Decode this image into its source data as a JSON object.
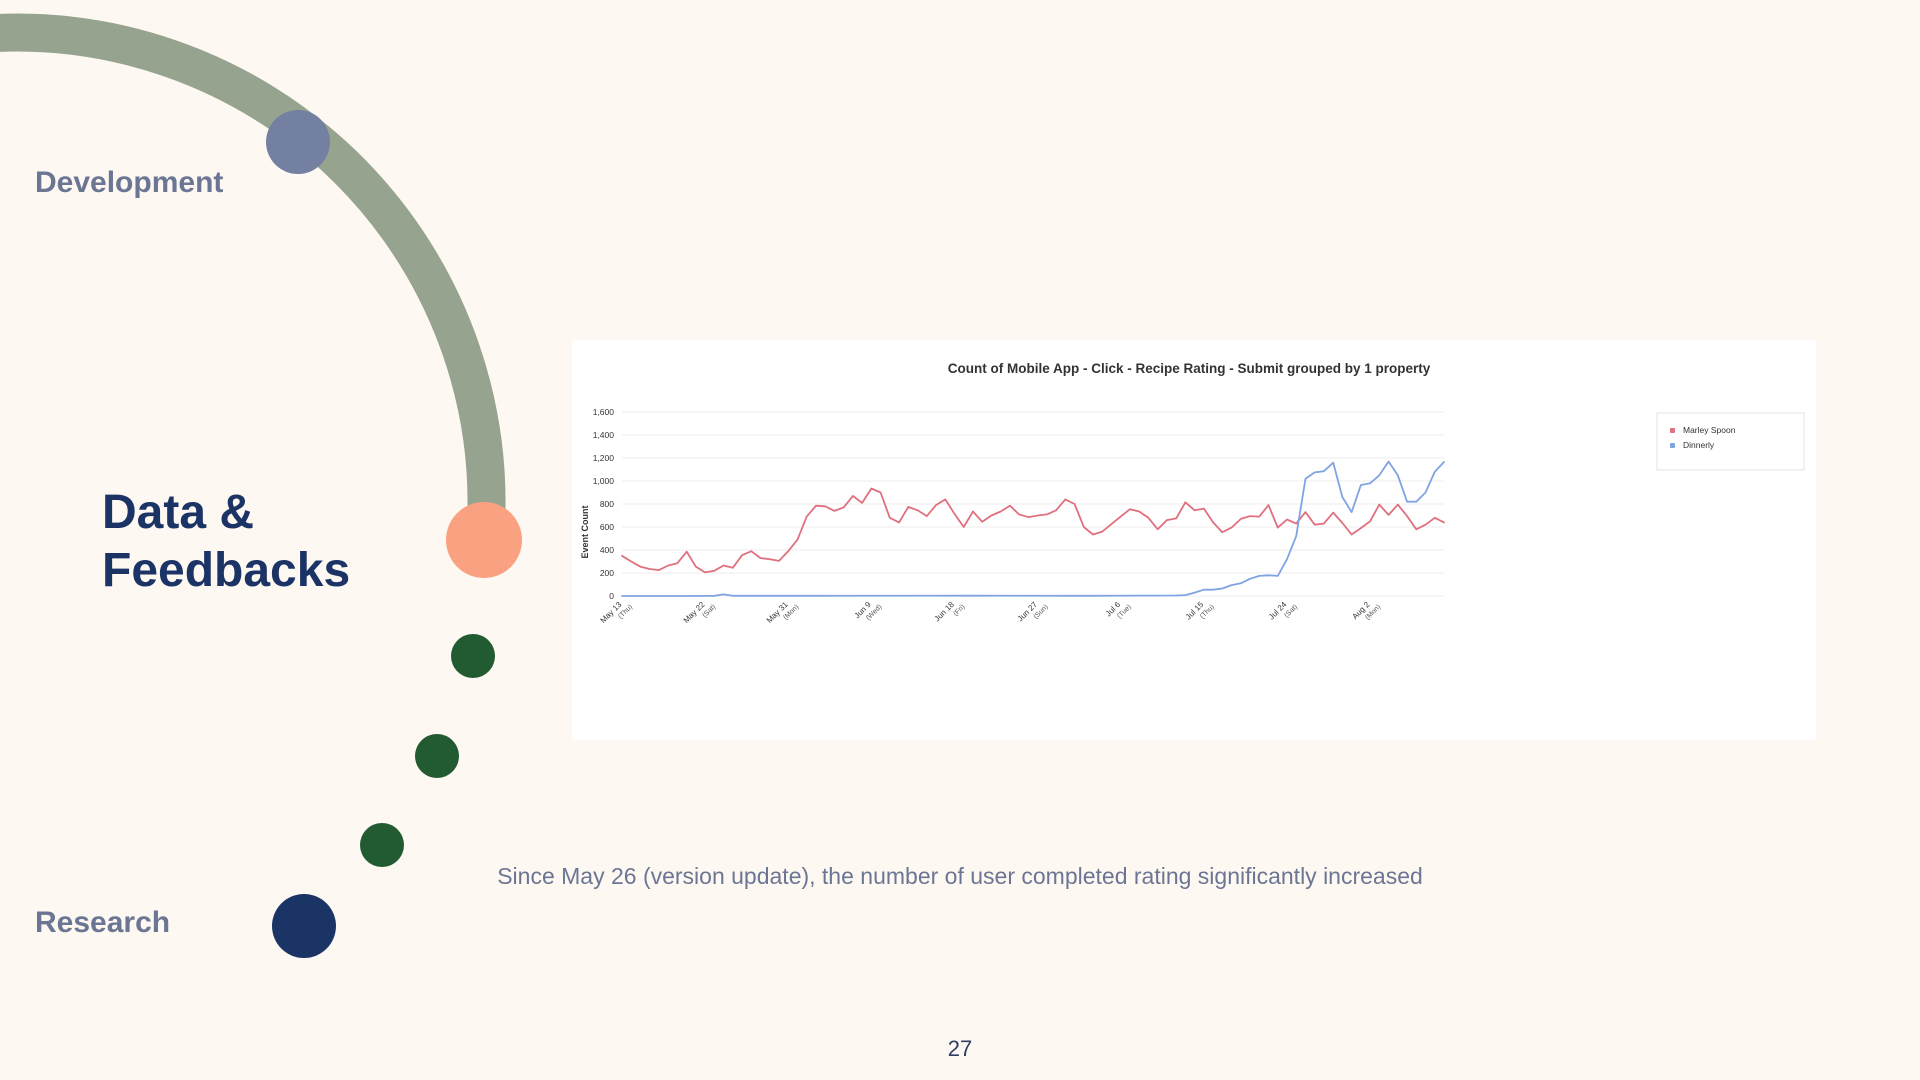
{
  "slide": {
    "stages": {
      "top": "Development",
      "current_line1": "Data &",
      "current_line2": "Feedbacks",
      "bottom": "Research"
    },
    "caption": "Since May 26 (version update), the number of user completed rating significantly increased",
    "page_number": "27",
    "colors": {
      "background": "#FEF8F2",
      "arc": "#96A38E",
      "development_dot": "#7480A2",
      "current_dot": "#F9A180",
      "step_dots": "#225A32",
      "research_dot": "#1A3466",
      "heading": "#1C3465",
      "muted_label": "#6B7694"
    }
  },
  "chart_data": {
    "type": "line",
    "title": "Count of Mobile App - Click - Recipe Rating - Submit grouped by 1 property",
    "xlabel": "",
    "ylabel": "Event Count",
    "ylim": [
      0,
      1600
    ],
    "yticks": [
      0,
      200,
      400,
      600,
      800,
      1000,
      1200,
      1400,
      1600
    ],
    "ytick_labels": [
      "0",
      "200",
      "400",
      "600",
      "800",
      "1,000",
      "1,200",
      "1,400",
      "1,600"
    ],
    "xlim": [
      "2023-05-13",
      "2023-08-10"
    ],
    "xticks": [
      {
        "date": "2023-05-13",
        "label": "May 13",
        "sub": "(Thu)"
      },
      {
        "date": "2023-05-22",
        "label": "May 22",
        "sub": "(Sat)"
      },
      {
        "date": "2023-05-31",
        "label": "May 31",
        "sub": "(Mon)"
      },
      {
        "date": "2023-06-09",
        "label": "Jun 9",
        "sub": "(Wed)"
      },
      {
        "date": "2023-06-18",
        "label": "Jun 18",
        "sub": "(Fri)"
      },
      {
        "date": "2023-06-27",
        "label": "Jun 27",
        "sub": "(Sun)"
      },
      {
        "date": "2023-07-06",
        "label": "Jul 6",
        "sub": "(Tue)"
      },
      {
        "date": "2023-07-15",
        "label": "Jul 15",
        "sub": "(Thu)"
      },
      {
        "date": "2023-07-24",
        "label": "Jul 24",
        "sub": "(Sat)"
      },
      {
        "date": "2023-08-02",
        "label": "Aug 2",
        "sub": "(Mon)"
      }
    ],
    "grid": true,
    "legend_position": "top-right",
    "series": [
      {
        "name": "Marley Spoon",
        "color": "#E0707E",
        "points": [
          [
            "2023-05-13",
            350
          ],
          [
            "2023-05-14",
            300
          ],
          [
            "2023-05-15",
            255
          ],
          [
            "2023-05-16",
            235
          ],
          [
            "2023-05-17",
            225
          ],
          [
            "2023-05-18",
            265
          ],
          [
            "2023-05-19",
            285
          ],
          [
            "2023-05-20",
            385
          ],
          [
            "2023-05-21",
            255
          ],
          [
            "2023-05-22",
            205
          ],
          [
            "2023-05-23",
            220
          ],
          [
            "2023-05-24",
            265
          ],
          [
            "2023-05-25",
            245
          ],
          [
            "2023-05-26",
            355
          ],
          [
            "2023-05-27",
            390
          ],
          [
            "2023-05-28",
            330
          ],
          [
            "2023-05-29",
            320
          ],
          [
            "2023-05-30",
            305
          ],
          [
            "2023-05-31",
            390
          ],
          [
            "2023-06-01",
            490
          ],
          [
            "2023-06-02",
            690
          ],
          [
            "2023-06-03",
            785
          ],
          [
            "2023-06-04",
            780
          ],
          [
            "2023-06-05",
            740
          ],
          [
            "2023-06-06",
            770
          ],
          [
            "2023-06-07",
            870
          ],
          [
            "2023-06-08",
            810
          ],
          [
            "2023-06-09",
            935
          ],
          [
            "2023-06-10",
            900
          ],
          [
            "2023-06-11",
            680
          ],
          [
            "2023-06-12",
            640
          ],
          [
            "2023-06-13",
            775
          ],
          [
            "2023-06-14",
            745
          ],
          [
            "2023-06-15",
            695
          ],
          [
            "2023-06-16",
            790
          ],
          [
            "2023-06-17",
            840
          ],
          [
            "2023-06-18",
            715
          ],
          [
            "2023-06-19",
            600
          ],
          [
            "2023-06-20",
            735
          ],
          [
            "2023-06-21",
            645
          ],
          [
            "2023-06-22",
            700
          ],
          [
            "2023-06-23",
            735
          ],
          [
            "2023-06-24",
            785
          ],
          [
            "2023-06-25",
            710
          ],
          [
            "2023-06-26",
            685
          ],
          [
            "2023-06-27",
            700
          ],
          [
            "2023-06-28",
            710
          ],
          [
            "2023-06-29",
            745
          ],
          [
            "2023-06-30",
            840
          ],
          [
            "2023-07-01",
            800
          ],
          [
            "2023-07-02",
            600
          ],
          [
            "2023-07-03",
            535
          ],
          [
            "2023-07-04",
            560
          ],
          [
            "2023-07-05",
            625
          ],
          [
            "2023-07-06",
            690
          ],
          [
            "2023-07-07",
            755
          ],
          [
            "2023-07-08",
            735
          ],
          [
            "2023-07-09",
            680
          ],
          [
            "2023-07-10",
            580
          ],
          [
            "2023-07-11",
            660
          ],
          [
            "2023-07-12",
            675
          ],
          [
            "2023-07-13",
            815
          ],
          [
            "2023-07-14",
            745
          ],
          [
            "2023-07-15",
            760
          ],
          [
            "2023-07-16",
            640
          ],
          [
            "2023-07-17",
            555
          ],
          [
            "2023-07-18",
            595
          ],
          [
            "2023-07-19",
            670
          ],
          [
            "2023-07-20",
            695
          ],
          [
            "2023-07-21",
            690
          ],
          [
            "2023-07-22",
            790
          ],
          [
            "2023-07-23",
            595
          ],
          [
            "2023-07-24",
            665
          ],
          [
            "2023-07-25",
            630
          ],
          [
            "2023-07-26",
            730
          ],
          [
            "2023-07-27",
            620
          ],
          [
            "2023-07-28",
            630
          ],
          [
            "2023-07-29",
            725
          ],
          [
            "2023-07-30",
            635
          ],
          [
            "2023-07-31",
            535
          ],
          [
            "2023-08-01",
            590
          ],
          [
            "2023-08-02",
            650
          ],
          [
            "2023-08-03",
            795
          ],
          [
            "2023-08-04",
            705
          ],
          [
            "2023-08-05",
            795
          ],
          [
            "2023-08-06",
            695
          ],
          [
            "2023-08-07",
            580
          ],
          [
            "2023-08-08",
            620
          ],
          [
            "2023-08-09",
            680
          ],
          [
            "2023-08-10",
            640
          ]
        ]
      },
      {
        "name": "Dinnerly",
        "color": "#7FA3E3",
        "points": [
          [
            "2023-05-13",
            0
          ],
          [
            "2023-05-20",
            0
          ],
          [
            "2023-05-23",
            2
          ],
          [
            "2023-05-24",
            14
          ],
          [
            "2023-05-25",
            2
          ],
          [
            "2023-06-01",
            2
          ],
          [
            "2023-06-20",
            3
          ],
          [
            "2023-07-02",
            2
          ],
          [
            "2023-07-12",
            4
          ],
          [
            "2023-07-13",
            8
          ],
          [
            "2023-07-14",
            30
          ],
          [
            "2023-07-15",
            55
          ],
          [
            "2023-07-16",
            55
          ],
          [
            "2023-07-17",
            65
          ],
          [
            "2023-07-18",
            95
          ],
          [
            "2023-07-19",
            110
          ],
          [
            "2023-07-20",
            150
          ],
          [
            "2023-07-21",
            175
          ],
          [
            "2023-07-22",
            180
          ],
          [
            "2023-07-23",
            175
          ],
          [
            "2023-07-24",
            320
          ],
          [
            "2023-07-25",
            520
          ],
          [
            "2023-07-26",
            1020
          ],
          [
            "2023-07-27",
            1075
          ],
          [
            "2023-07-28",
            1085
          ],
          [
            "2023-07-29",
            1160
          ],
          [
            "2023-07-30",
            860
          ],
          [
            "2023-07-31",
            730
          ],
          [
            "2023-08-01",
            965
          ],
          [
            "2023-08-02",
            980
          ],
          [
            "2023-08-03",
            1050
          ],
          [
            "2023-08-04",
            1170
          ],
          [
            "2023-08-05",
            1050
          ],
          [
            "2023-08-06",
            820
          ],
          [
            "2023-08-07",
            820
          ],
          [
            "2023-08-08",
            900
          ],
          [
            "2023-08-09",
            1080
          ],
          [
            "2023-08-10",
            1165
          ]
        ]
      }
    ]
  }
}
